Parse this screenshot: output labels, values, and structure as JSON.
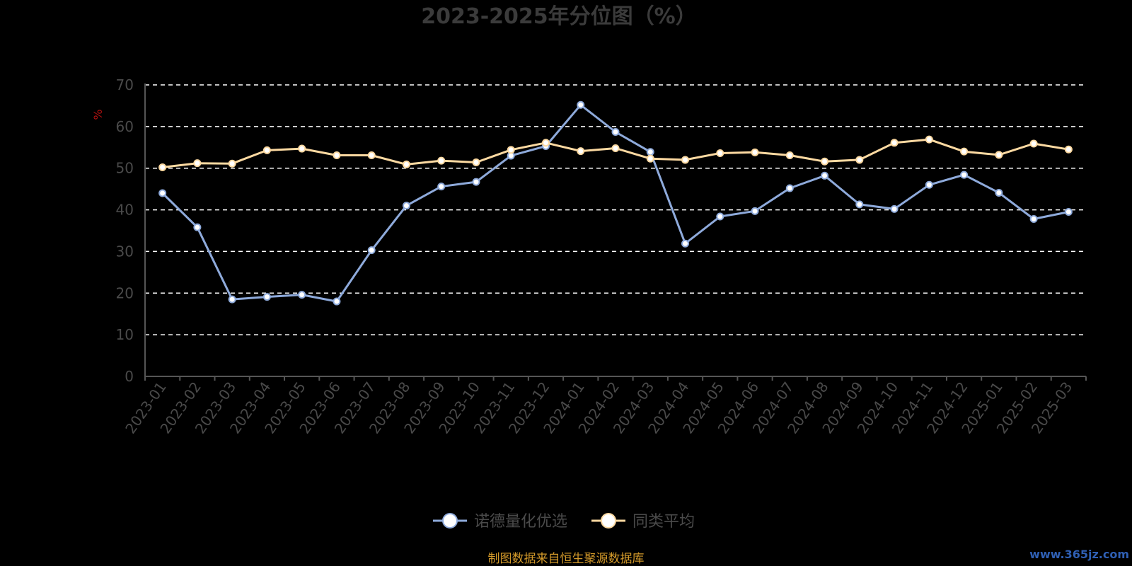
{
  "chart_data": {
    "type": "line",
    "title": "2023-2025年分位图（%）",
    "ylabel": "%",
    "xlabel": "",
    "ylim": [
      0,
      70
    ],
    "yticks": [
      0,
      10,
      20,
      30,
      40,
      50,
      60,
      70
    ],
    "grid": true,
    "legend_position": "bottom-center",
    "categories": [
      "2023-01",
      "2023-02",
      "2023-03",
      "2023-04",
      "2023-05",
      "2023-06",
      "2023-07",
      "2023-08",
      "2023-09",
      "2023-10",
      "2023-11",
      "2023-12",
      "2024-01",
      "2024-02",
      "2024-03",
      "2024-04",
      "2024-05",
      "2024-06",
      "2024-07",
      "2024-08",
      "2024-09",
      "2024-10",
      "2024-11",
      "2024-12",
      "2025-01",
      "2025-02",
      "2025-03"
    ],
    "series": [
      {
        "name": "诺德量化优选",
        "color": "#8eaadb",
        "values": [
          44,
          35.8,
          18.5,
          19.1,
          19.6,
          18,
          30.3,
          41,
          45.6,
          46.7,
          53,
          55.3,
          65.2,
          58.7,
          53.9,
          31.9,
          38.4,
          39.7,
          45.2,
          48.2,
          41.3,
          40.2,
          46,
          48.4,
          44.1,
          37.8,
          39.5
        ]
      },
      {
        "name": "同类平均",
        "color": "#fcd9a1",
        "values": [
          50.2,
          51.2,
          51.1,
          54.3,
          54.7,
          53.1,
          53.1,
          50.9,
          51.8,
          51.4,
          54.4,
          56.1,
          54.1,
          54.8,
          52.3,
          52,
          53.6,
          53.8,
          53.1,
          51.6,
          52,
          56.1,
          56.9,
          54,
          53.2,
          55.9,
          54.5
        ]
      }
    ]
  },
  "footer": {
    "source": "制图数据来自恒生聚源数据库",
    "watermark": "www.365jz.com"
  }
}
